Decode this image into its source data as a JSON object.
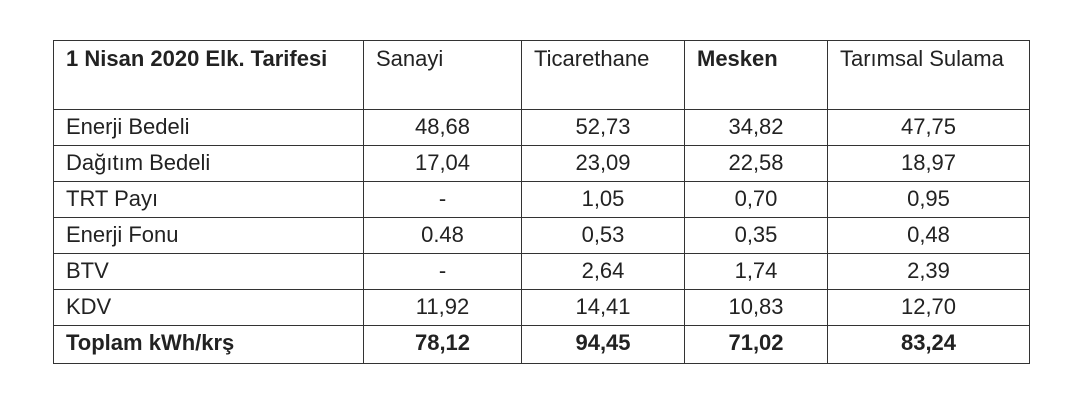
{
  "table": {
    "headers": [
      "1 Nisan 2020 Elk. Tarifesi",
      "Sanayi",
      "Ticarethane",
      "Mesken",
      "Tarımsal Sulama"
    ],
    "rows": [
      [
        "Enerji Bedeli",
        "48,68",
        "52,73",
        "34,82",
        "47,75"
      ],
      [
        "Dağıtım Bedeli",
        "17,04",
        "23,09",
        "22,58",
        "18,97"
      ],
      [
        "TRT Payı",
        "-",
        "1,05",
        "0,70",
        "0,95"
      ],
      [
        "Enerji Fonu",
        "0.48",
        "0,53",
        "0,35",
        "0,48"
      ],
      [
        "BTV",
        "-",
        "2,64",
        "1,74",
        "2,39"
      ],
      [
        "KDV",
        "11,92",
        "14,41",
        "10,83",
        "12,70"
      ]
    ],
    "total": [
      "Toplam kWh/krş",
      "78,12",
      "94,45",
      "71,02",
      "83,24"
    ]
  }
}
